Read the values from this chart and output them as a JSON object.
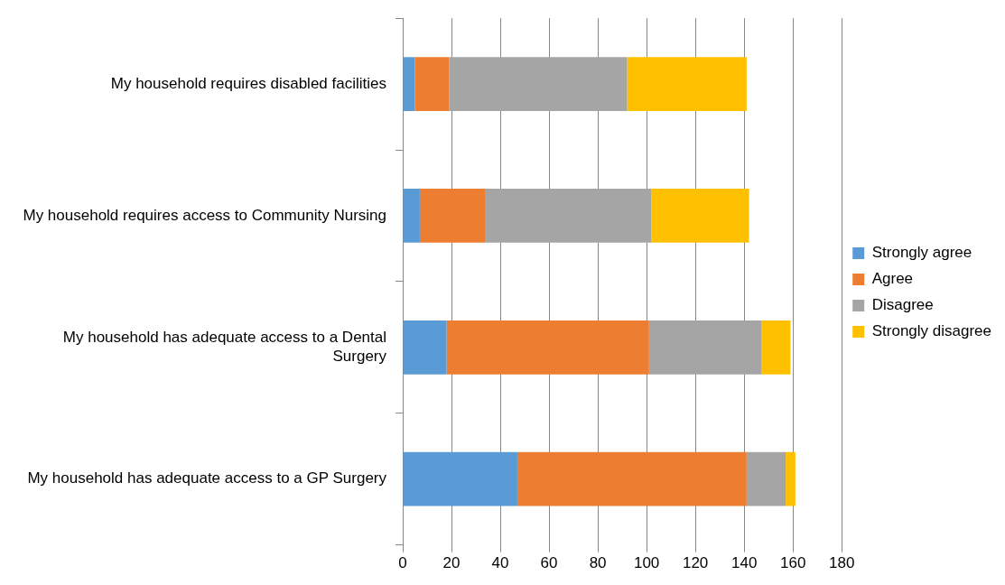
{
  "chart_data": {
    "type": "bar",
    "orientation": "horizontal",
    "stacked": true,
    "categories": [
      "My household requires disabled facilities",
      "My household requires access to Community Nursing",
      "My household has adequate access to a Dental Surgery",
      "My household has adequate access to a GP Surgery"
    ],
    "series": [
      {
        "name": "Strongly agree",
        "color": "#5b9bd5",
        "values": [
          5,
          7,
          18,
          47
        ]
      },
      {
        "name": "Agree",
        "color": "#ed7d31",
        "values": [
          14,
          27,
          83,
          94
        ]
      },
      {
        "name": "Disagree",
        "color": "#a5a5a5",
        "values": [
          73,
          68,
          46,
          16
        ]
      },
      {
        "name": "Strongly disagree",
        "color": "#ffc000",
        "values": [
          49,
          40,
          12,
          4
        ]
      }
    ],
    "xlim": [
      0,
      180
    ],
    "xticks": [
      0,
      20,
      40,
      60,
      80,
      100,
      120,
      140,
      160,
      180
    ],
    "grid": "x",
    "legend": "right"
  }
}
